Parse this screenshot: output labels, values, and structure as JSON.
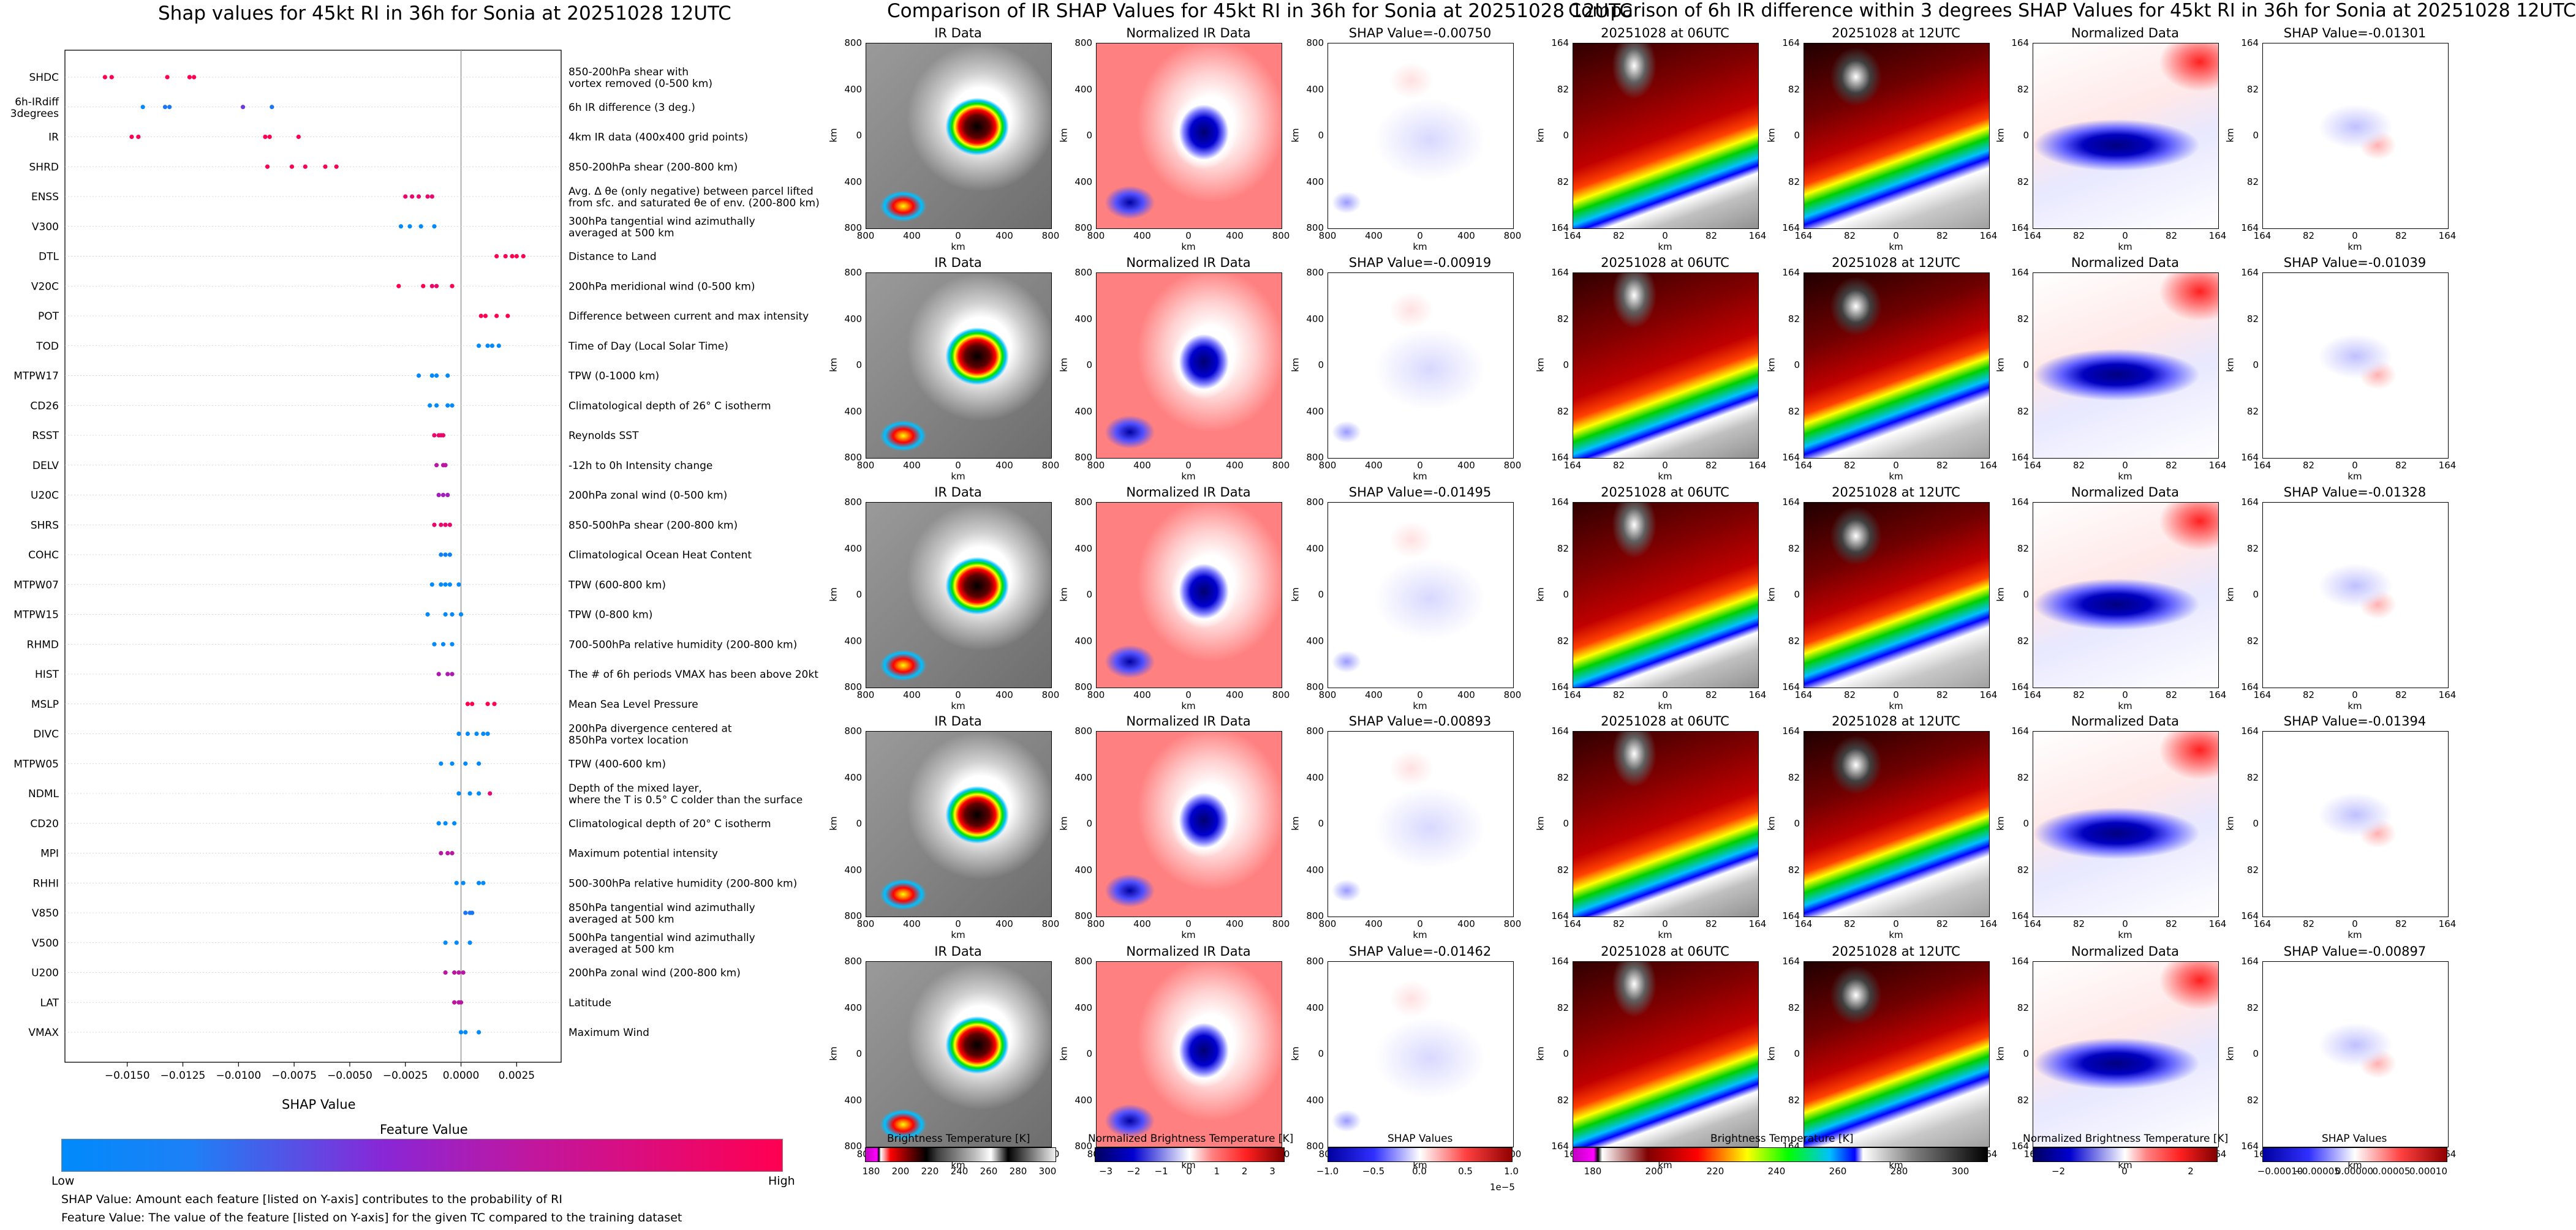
{
  "left": {
    "title": "Shap values for 45kt RI in 36h for Sonia at 20251028 12UTC",
    "xlabel": "SHAP Value",
    "legend_title": "Feature Value",
    "legend_low": "Low",
    "legend_high": "High",
    "note1": "SHAP Value: Amount each feature [listed on Y-axis] contributes to the probability of RI",
    "note2": "Feature Value: The value of the feature [listed on Y-axis] for the given TC compared to the training dataset"
  },
  "chart_data": {
    "type": "scatter",
    "title": "Shap values for 45kt RI in 36h for Sonia at 20251028 12UTC",
    "xlabel": "SHAP Value",
    "xlim": [
      -0.0178,
      0.0045
    ],
    "xticks": [
      -0.015,
      -0.0125,
      -0.01,
      -0.0075,
      -0.005,
      -0.0025,
      0.0,
      0.0025
    ],
    "xtick_labels": [
      "−0.0150",
      "−0.0125",
      "−0.0100",
      "−0.0075",
      "−0.0050",
      "−0.0025",
      "0.0000",
      "0.0025"
    ],
    "features": [
      {
        "name": "SHDC",
        "desc": "850-200hPa shear with\nvortex removed (0-500 km)",
        "points": [
          [
            -0.016,
            1
          ],
          [
            -0.0157,
            1
          ],
          [
            -0.0132,
            1
          ],
          [
            -0.0122,
            1
          ],
          [
            -0.012,
            1
          ]
        ]
      },
      {
        "name": "6h-IRdiff\n3degrees",
        "desc": "6h IR difference (3 deg.)",
        "points": [
          [
            -0.0143,
            0
          ],
          [
            -0.0133,
            0.1
          ],
          [
            -0.0131,
            0.1
          ],
          [
            -0.0098,
            0.4
          ],
          [
            -0.0085,
            0.1
          ]
        ]
      },
      {
        "name": "IR",
        "desc": "4km IR data (400x400 grid points)",
        "points": [
          [
            -0.0148,
            1
          ],
          [
            -0.0145,
            1
          ],
          [
            -0.0088,
            1
          ],
          [
            -0.0086,
            1
          ],
          [
            -0.0073,
            1
          ]
        ]
      },
      {
        "name": "SHRD",
        "desc": "850-200hPa shear (200-800 km)",
        "points": [
          [
            -0.0087,
            1
          ],
          [
            -0.0076,
            1
          ],
          [
            -0.007,
            1
          ],
          [
            -0.0061,
            1
          ],
          [
            -0.0056,
            1
          ]
        ]
      },
      {
        "name": "ENSS",
        "desc": "Avg. Δ θe (only negative) between parcel lifted\nfrom sfc. and saturated θe of env. (200-800 km)",
        "points": [
          [
            -0.0025,
            0.9
          ],
          [
            -0.0022,
            0.9
          ],
          [
            -0.0019,
            0.9
          ],
          [
            -0.0015,
            0.9
          ],
          [
            -0.0013,
            0.9
          ]
        ]
      },
      {
        "name": "V300",
        "desc": "300hPa tangential wind azimuthally\naveraged at 500 km",
        "points": [
          [
            -0.0027,
            0
          ],
          [
            -0.0023,
            0
          ],
          [
            -0.0018,
            0
          ],
          [
            -0.0012,
            0
          ]
        ]
      },
      {
        "name": "DTL",
        "desc": "Distance to Land",
        "points": [
          [
            0.0016,
            1
          ],
          [
            0.002,
            1
          ],
          [
            0.0023,
            1
          ],
          [
            0.0025,
            1
          ],
          [
            0.0028,
            1
          ]
        ]
      },
      {
        "name": "V20C",
        "desc": "200hPa meridional wind (0-500 km)",
        "points": [
          [
            -0.0028,
            1
          ],
          [
            -0.0017,
            1
          ],
          [
            -0.0013,
            0.9
          ],
          [
            -0.0011,
            0.9
          ],
          [
            -0.0004,
            1
          ]
        ]
      },
      {
        "name": "POT",
        "desc": "Difference between current and max intensity",
        "points": [
          [
            0.0009,
            1
          ],
          [
            0.0011,
            1
          ],
          [
            0.0016,
            1
          ],
          [
            0.0021,
            1
          ]
        ]
      },
      {
        "name": "TOD",
        "desc": "Time of Day (Local Solar Time)",
        "points": [
          [
            0.0008,
            0
          ],
          [
            0.0012,
            0
          ],
          [
            0.0014,
            0
          ],
          [
            0.0017,
            0
          ]
        ]
      },
      {
        "name": "MTPW17",
        "desc": "TPW (0-1000 km)",
        "points": [
          [
            -0.0019,
            0
          ],
          [
            -0.0013,
            0
          ],
          [
            -0.0011,
            0
          ],
          [
            -0.0006,
            0
          ]
        ]
      },
      {
        "name": "CD26",
        "desc": "Climatological depth of 26° C isotherm",
        "points": [
          [
            -0.0014,
            0
          ],
          [
            -0.0011,
            0
          ],
          [
            -0.0006,
            0
          ],
          [
            -0.0004,
            0
          ]
        ]
      },
      {
        "name": "RSST",
        "desc": "Reynolds SST",
        "points": [
          [
            -0.0012,
            0.9
          ],
          [
            -0.001,
            0.9
          ],
          [
            -0.0009,
            0.9
          ],
          [
            -0.0008,
            0.9
          ]
        ]
      },
      {
        "name": "DELV",
        "desc": "-12h to 0h Intensity change",
        "points": [
          [
            -0.0011,
            0.7
          ],
          [
            -0.0008,
            0.7
          ],
          [
            -0.0007,
            0.7
          ]
        ]
      },
      {
        "name": "U20C",
        "desc": "200hPa zonal wind (0-500 km)",
        "points": [
          [
            -0.001,
            0.6
          ],
          [
            -0.0008,
            0.6
          ],
          [
            -0.0006,
            0.6
          ]
        ]
      },
      {
        "name": "SHRS",
        "desc": "850-500hPa shear (200-800 km)",
        "points": [
          [
            -0.0012,
            0.9
          ],
          [
            -0.0009,
            0.9
          ],
          [
            -0.0007,
            0.9
          ],
          [
            -0.0005,
            0.9
          ]
        ]
      },
      {
        "name": "COHC",
        "desc": "Climatological Ocean Heat Content",
        "points": [
          [
            -0.0009,
            0.05
          ],
          [
            -0.0007,
            0.05
          ],
          [
            -0.0005,
            0.05
          ]
        ]
      },
      {
        "name": "MTPW07",
        "desc": "TPW (600-800 km)",
        "points": [
          [
            -0.0013,
            0
          ],
          [
            -0.0009,
            0
          ],
          [
            -0.0007,
            0
          ],
          [
            -0.0005,
            0
          ],
          [
            -0.0001,
            0
          ]
        ]
      },
      {
        "name": "MTPW15",
        "desc": "TPW (0-800 km)",
        "points": [
          [
            -0.0015,
            0
          ],
          [
            -0.0007,
            0
          ],
          [
            -0.0004,
            0
          ],
          [
            0.0,
            0
          ]
        ]
      },
      {
        "name": "RHMD",
        "desc": "700-500hPa relative humidity (200-800 km)",
        "points": [
          [
            -0.0012,
            0
          ],
          [
            -0.0008,
            0
          ],
          [
            -0.0004,
            0
          ]
        ]
      },
      {
        "name": "HIST",
        "desc": "The # of 6h periods VMAX has been above 20kt",
        "points": [
          [
            -0.001,
            0.65
          ],
          [
            -0.0006,
            0.65
          ],
          [
            -0.0004,
            0.65
          ]
        ]
      },
      {
        "name": "MSLP",
        "desc": "Mean Sea Level Pressure",
        "points": [
          [
            0.0003,
            1
          ],
          [
            0.0005,
            1
          ],
          [
            0.0012,
            1
          ],
          [
            0.0015,
            1
          ]
        ]
      },
      {
        "name": "DIVC",
        "desc": "200hPa divergence centered at\n850hPa vortex location",
        "points": [
          [
            -0.0001,
            0
          ],
          [
            0.0003,
            0
          ],
          [
            0.0007,
            0
          ],
          [
            0.001,
            0
          ],
          [
            0.0012,
            0
          ]
        ]
      },
      {
        "name": "MTPW05",
        "desc": "TPW (400-600 km)",
        "points": [
          [
            -0.0009,
            0
          ],
          [
            -0.0004,
            0
          ],
          [
            0.0002,
            0
          ],
          [
            0.0008,
            0
          ]
        ]
      },
      {
        "name": "NDML",
        "desc": "Depth of the mixed layer,\nwhere the T is 0.5° C colder than the surface",
        "points": [
          [
            -0.0001,
            0
          ],
          [
            0.0004,
            0
          ],
          [
            0.0008,
            0
          ],
          [
            0.0013,
            0.9
          ]
        ]
      },
      {
        "name": "CD20",
        "desc": "Climatological depth of 20° C isotherm",
        "points": [
          [
            -0.001,
            0
          ],
          [
            -0.0007,
            0
          ],
          [
            -0.0003,
            0
          ]
        ]
      },
      {
        "name": "MPI",
        "desc": "Maximum potential intensity",
        "points": [
          [
            -0.0009,
            0.7
          ],
          [
            -0.0006,
            0.7
          ],
          [
            -0.0004,
            0.7
          ]
        ]
      },
      {
        "name": "RHHI",
        "desc": "500-300hPa relative humidity (200-800 km)",
        "points": [
          [
            -0.0002,
            0
          ],
          [
            0.0001,
            0
          ],
          [
            0.0008,
            0
          ],
          [
            0.001,
            0
          ]
        ]
      },
      {
        "name": "V850",
        "desc": "850hPa tangential wind azimuthally\naveraged at 500 km",
        "points": [
          [
            0.0002,
            0.1
          ],
          [
            0.0004,
            0.1
          ],
          [
            0.0005,
            0.1
          ]
        ]
      },
      {
        "name": "V500",
        "desc": "500hPa tangential wind azimuthally\naveraged at 500 km",
        "points": [
          [
            -0.0007,
            0
          ],
          [
            -0.0002,
            0
          ],
          [
            0.0004,
            0
          ]
        ]
      },
      {
        "name": "U200",
        "desc": "200hPa zonal wind (200-800 km)",
        "points": [
          [
            -0.0007,
            0.7
          ],
          [
            -0.0003,
            0.7
          ],
          [
            -0.0001,
            0.7
          ],
          [
            0.0001,
            0.7
          ]
        ]
      },
      {
        "name": "LAT",
        "desc": "Latitude",
        "points": [
          [
            -0.0003,
            0.7
          ],
          [
            -0.0001,
            0.7
          ],
          [
            0.0,
            0.7
          ]
        ]
      },
      {
        "name": "VMAX",
        "desc": "Maximum Wind",
        "points": [
          [
            0.0,
            0
          ],
          [
            0.0002,
            0
          ],
          [
            0.0008,
            0
          ]
        ]
      }
    ]
  },
  "middle": {
    "title": "Comparison of IR SHAP Values for 45kt RI in 36h for Sonia at 20251028 12UTC",
    "col_titles": [
      "IR Data",
      "Normalized IR Data"
    ],
    "shap_titles": [
      "SHAP Value=-0.00750",
      "SHAP Value=-0.00919",
      "SHAP Value=-0.01495",
      "SHAP Value=-0.00893",
      "SHAP Value=-0.01462"
    ],
    "ticks": [
      "800",
      "400",
      "0",
      "400",
      "800"
    ],
    "axis_label": "km",
    "cbar_labels": [
      "Brightness Temperature [K]",
      "Normalized Brightness Temperature [K]",
      "SHAP Values"
    ],
    "cbar1_ticks": [
      "180",
      "200",
      "220",
      "240",
      "260",
      "280",
      "300"
    ],
    "cbar2_ticks": [
      "−3",
      "−2",
      "−1",
      "0",
      "1",
      "2",
      "3"
    ],
    "cbar3_ticks": [
      "−1.0",
      "−0.5",
      "0.0",
      "0.5",
      "1.0"
    ],
    "cbar3_exp": "1e−5"
  },
  "right": {
    "title": "Comparison of 6h IR difference within 3 degrees SHAP Values for 45kt RI in 36h for Sonia at 20251028 12UTC",
    "col_titles": [
      "20251028 at 06UTC",
      "20251028 at 12UTC",
      "Normalized Data"
    ],
    "shap_titles": [
      "SHAP Value=-0.01301",
      "SHAP Value=-0.01039",
      "SHAP Value=-0.01328",
      "SHAP Value=-0.01394",
      "SHAP Value=-0.00897"
    ],
    "ticks": [
      "164",
      "82",
      "0",
      "82",
      "164"
    ],
    "axis_label": "km",
    "cbar_labels": [
      "Brightness Temperature [K]",
      "Normalized Brightness Temperature [K]",
      "SHAP Values"
    ],
    "cbar1_ticks": [
      "180",
      "200",
      "220",
      "240",
      "260",
      "280",
      "300"
    ],
    "cbar2_ticks": [
      "−2",
      "0",
      "2"
    ],
    "cbar3_ticks": [
      "−0.00010",
      "−0.00005",
      "0.00000",
      "0.00005",
      "0.00010"
    ]
  }
}
